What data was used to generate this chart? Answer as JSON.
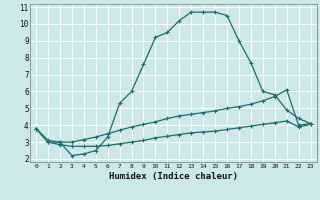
{
  "xlabel": "Humidex (Indice chaleur)",
  "bg_color": "#cce8e8",
  "grid_color": "#b0d4d4",
  "line_color": "#1a6e6e",
  "xlim": [
    -0.5,
    23.5
  ],
  "ylim": [
    1.8,
    11.2
  ],
  "xticks": [
    0,
    1,
    2,
    3,
    4,
    5,
    6,
    7,
    8,
    9,
    10,
    11,
    12,
    13,
    14,
    15,
    16,
    17,
    18,
    19,
    20,
    21,
    22,
    23
  ],
  "yticks": [
    2,
    3,
    4,
    5,
    6,
    7,
    8,
    9,
    10,
    11
  ],
  "line1_y": [
    3.8,
    3.0,
    3.0,
    2.2,
    2.3,
    2.5,
    3.3,
    5.3,
    6.0,
    7.6,
    9.2,
    9.5,
    10.2,
    10.7,
    10.7,
    10.7,
    10.5,
    9.0,
    7.7,
    6.0,
    5.8,
    4.9,
    4.4,
    4.1
  ],
  "line2_y": [
    3.8,
    3.1,
    3.0,
    3.0,
    3.15,
    3.3,
    3.5,
    3.7,
    3.9,
    4.05,
    4.2,
    4.4,
    4.55,
    4.65,
    4.75,
    4.85,
    5.0,
    5.1,
    5.25,
    5.45,
    5.7,
    6.1,
    4.0,
    4.1
  ],
  "line3_y": [
    3.8,
    3.0,
    2.85,
    2.75,
    2.75,
    2.75,
    2.8,
    2.9,
    3.0,
    3.1,
    3.25,
    3.35,
    3.45,
    3.55,
    3.6,
    3.65,
    3.75,
    3.85,
    3.95,
    4.05,
    4.15,
    4.25,
    3.9,
    4.05
  ]
}
